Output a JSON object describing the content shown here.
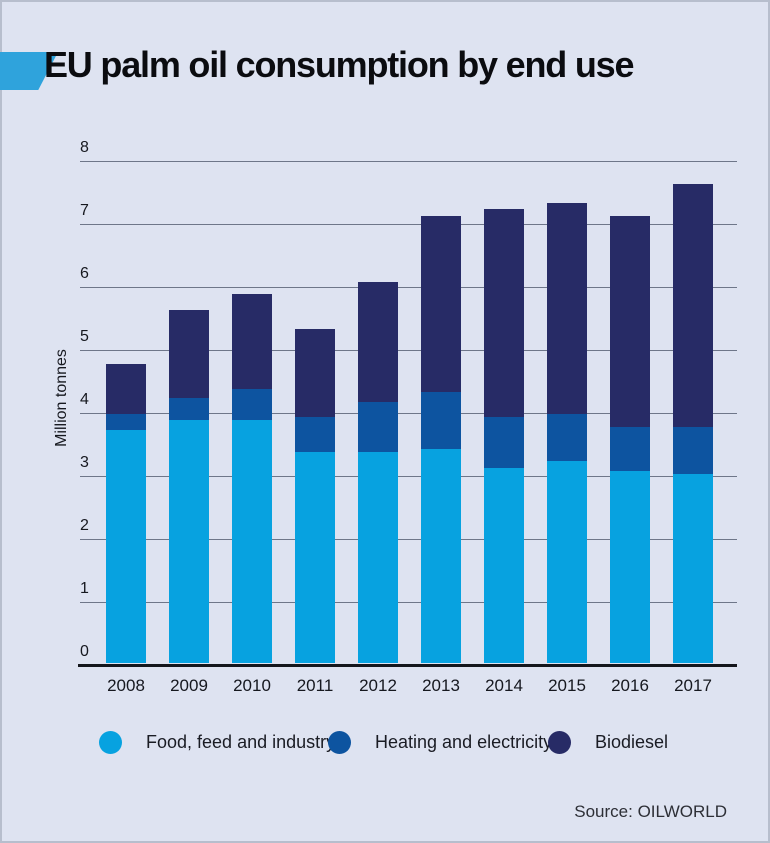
{
  "title": "EU palm oil consumption by end use",
  "source": "Source: OILWORLD",
  "colors": {
    "background": "#dee3f1",
    "flag": "#2fa3dc",
    "grid": "#6e7689",
    "axis": "#14161c",
    "text": "#16181f",
    "food": "#07a2e0",
    "heating": "#0d54a0",
    "biodiesel": "#272b66"
  },
  "chart_data": {
    "type": "bar",
    "stacked": true,
    "title": "EU palm oil consumption by end use",
    "categories": [
      "2008",
      "2009",
      "2010",
      "2011",
      "2012",
      "2013",
      "2014",
      "2015",
      "2016",
      "2017"
    ],
    "series": [
      {
        "name": "Food, feed and industry",
        "color": "#07a2e0",
        "values": [
          3.7,
          3.85,
          3.85,
          3.35,
          3.35,
          3.4,
          3.1,
          3.2,
          3.05,
          3.0
        ]
      },
      {
        "name": "Heating and electricity",
        "color": "#0d54a0",
        "values": [
          0.25,
          0.35,
          0.5,
          0.55,
          0.8,
          0.9,
          0.8,
          0.75,
          0.7,
          0.75
        ]
      },
      {
        "name": "Biodiesel",
        "color": "#272b66",
        "values": [
          0.8,
          1.4,
          1.5,
          1.4,
          1.9,
          2.8,
          3.3,
          3.35,
          3.35,
          3.85
        ]
      }
    ],
    "totals": [
      4.75,
      5.6,
      5.85,
      5.3,
      6.05,
      7.1,
      7.2,
      7.3,
      7.1,
      7.6
    ],
    "xlabel": "",
    "ylabel": "Million tonnes",
    "ylim": [
      0,
      8
    ],
    "ytick_interval": 1,
    "grid": true,
    "legend_position": "bottom"
  }
}
